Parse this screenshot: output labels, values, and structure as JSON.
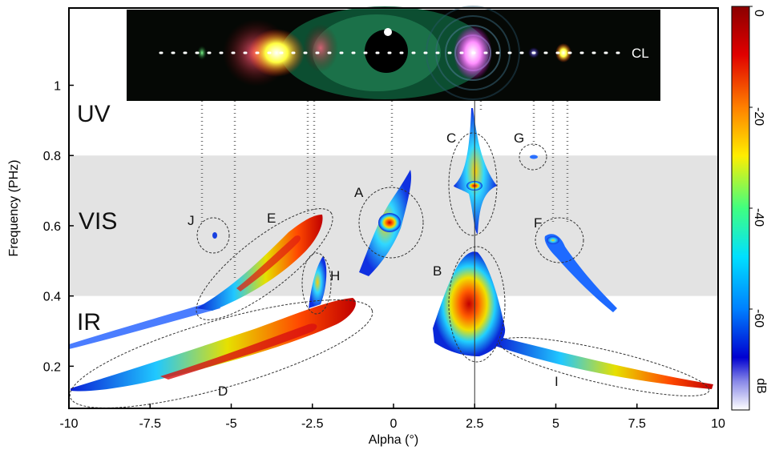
{
  "chart_data": {
    "type": "heatmap",
    "title": "",
    "xlabel": "Alpha (°)",
    "ylabel": "Frequency (PHz)",
    "xlim": [
      -10,
      10
    ],
    "ylim": [
      0.08,
      1.22
    ],
    "xticks": [
      -10,
      -7.5,
      -5,
      -2.5,
      0,
      2.5,
      5,
      7.5,
      10
    ],
    "xtick_labels": [
      "-10",
      "-7.5",
      "-5",
      "-2.5",
      "0",
      "2.5",
      "5",
      "7.5",
      "10"
    ],
    "yticks": [
      0.2,
      0.4,
      0.6,
      0.8,
      1
    ],
    "ytick_labels": [
      "0.2",
      "0.4",
      "0.6",
      "0.8",
      "1"
    ],
    "bands": [
      {
        "label": "UV"
      },
      {
        "label": "VIS",
        "y_range": [
          0.4,
          0.8
        ]
      },
      {
        "label": "IR"
      }
    ],
    "colorbar": {
      "unit": "dB",
      "range": [
        -80,
        0
      ],
      "ticks": [
        0,
        -20,
        -40,
        -60
      ],
      "tick_labels": [
        "0",
        "-20",
        "-40",
        "-60"
      ]
    },
    "inset_label": "CL",
    "features": [
      {
        "label": "A",
        "x": 0.2,
        "y": 0.58
      },
      {
        "label": "B",
        "x": 2.5,
        "y": 0.36
      },
      {
        "label": "C",
        "x": 2.5,
        "y": 0.7
      },
      {
        "label": "D",
        "x": -5.0,
        "y": 0.22
      },
      {
        "label": "E",
        "x": -3.5,
        "y": 0.48
      },
      {
        "label": "F",
        "x": 5.3,
        "y": 0.52
      },
      {
        "label": "G",
        "x": 4.5,
        "y": 0.77
      },
      {
        "label": "H",
        "x": -2.3,
        "y": 0.44
      },
      {
        "label": "I",
        "x": 6.5,
        "y": 0.18
      },
      {
        "label": "J",
        "x": -5.5,
        "y": 0.56
      }
    ],
    "vertical_line_x": 2.5,
    "grid": false
  }
}
